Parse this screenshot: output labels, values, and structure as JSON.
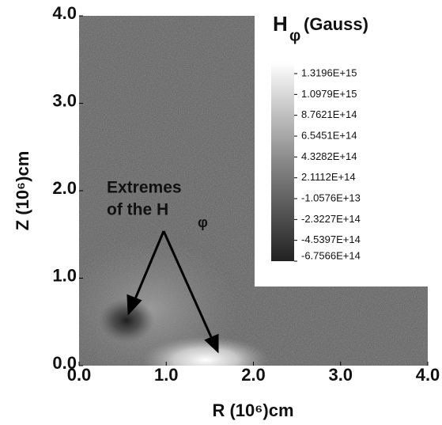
{
  "chart_data": {
    "type": "heatmap",
    "title": {
      "symbol": "H",
      "subscript": "φ",
      "unit": "(Gauss)"
    },
    "x_label": "R (10⁶)cm",
    "y_label": "Z (10⁶)cm",
    "xlim": [
      0,
      4
    ],
    "ylim": [
      0,
      4
    ],
    "xticks": [
      {
        "value": 0,
        "label": "0.0"
      },
      {
        "value": 1,
        "label": "1.0"
      },
      {
        "value": 2,
        "label": "2.0"
      },
      {
        "value": 3,
        "label": "3.0"
      },
      {
        "value": 4,
        "label": "4.0"
      }
    ],
    "yticks": [
      {
        "value": 0,
        "label": "0.0"
      },
      {
        "value": 1,
        "label": "1.0"
      },
      {
        "value": 2,
        "label": "2.0"
      },
      {
        "value": 3,
        "label": "3.0"
      },
      {
        "value": 4,
        "label": "4.0"
      }
    ],
    "clim": [
      -675660000000000.0,
      1445900000000000.0
    ],
    "cticks": [
      {
        "value": 1319600000000000.0,
        "label": "1.3196E+15"
      },
      {
        "value": 1097900000000000.0,
        "label": "1.0979E+15"
      },
      {
        "value": 876210000000000.0,
        "label": "8.7621E+14"
      },
      {
        "value": 654510000000000.0,
        "label": "6.5451E+14"
      },
      {
        "value": 432820000000000.0,
        "label": "4.3282E+14"
      },
      {
        "value": 211120000000000.0,
        "label": "2.1112E+14"
      },
      {
        "value": -10576000000000.0,
        "label": "-1.0576E+13"
      },
      {
        "value": -232270000000000.0,
        "label": "-2.3227E+14"
      },
      {
        "value": -453970000000000.0,
        "label": "-4.5397E+14"
      },
      {
        "value": -675660000000000.0,
        "label": "-6.7566E+14"
      }
    ],
    "annotation": {
      "lines": [
        "Extremes",
        "of the H"
      ],
      "subscript": "φ"
    }
  }
}
